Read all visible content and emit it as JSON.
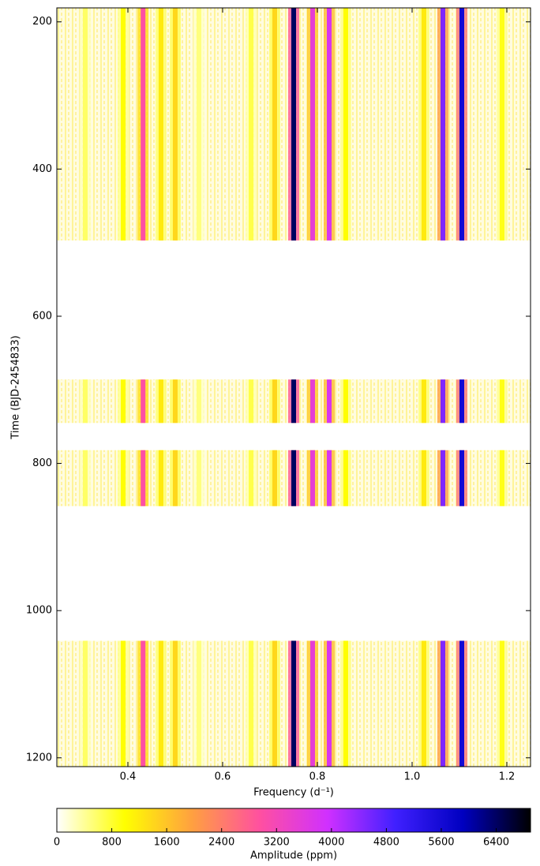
{
  "chart_data": {
    "type": "heatmap",
    "xlabel": "Frequency (d⁻¹)",
    "ylabel": "Time (BJD-2454833)",
    "xlim": [
      0.25,
      1.25
    ],
    "xticks": [
      0.4,
      0.6,
      0.8,
      {
        "value": 1,
        "label": "1.0"
      },
      1.2
    ],
    "ylim": [
      181,
      1212
    ],
    "y_inverted": true,
    "yticks": [
      200,
      400,
      600,
      800,
      1000,
      1200
    ],
    "segments": {
      "start": [
        181,
        686,
        782,
        1041
      ],
      "end": [
        497,
        745,
        858,
        1212
      ]
    },
    "stripes": {
      "frequencies": [
        0.31,
        0.39,
        0.432,
        0.47,
        0.5,
        0.55,
        0.66,
        0.71,
        0.75,
        0.79,
        0.825,
        0.86,
        1.025,
        1.065,
        1.105,
        1.19
      ],
      "amplitudes": [
        600,
        1000,
        3000,
        1200,
        1400,
        500,
        700,
        1400,
        6400,
        3500,
        3800,
        1000,
        1200,
        4500,
        5600,
        900
      ]
    },
    "colorbar": {
      "label": "Amplitude (ppm)",
      "clim": [
        0,
        6900
      ],
      "ticks": [
        0,
        800,
        1600,
        2400,
        3200,
        4000,
        4800,
        5600,
        6400
      ],
      "colormap": [
        "#ffffff",
        "#ffff00",
        "#ffa040",
        "#ff50a0",
        "#d030ff",
        "#4020ff",
        "#0000c0",
        "#000000"
      ]
    }
  }
}
